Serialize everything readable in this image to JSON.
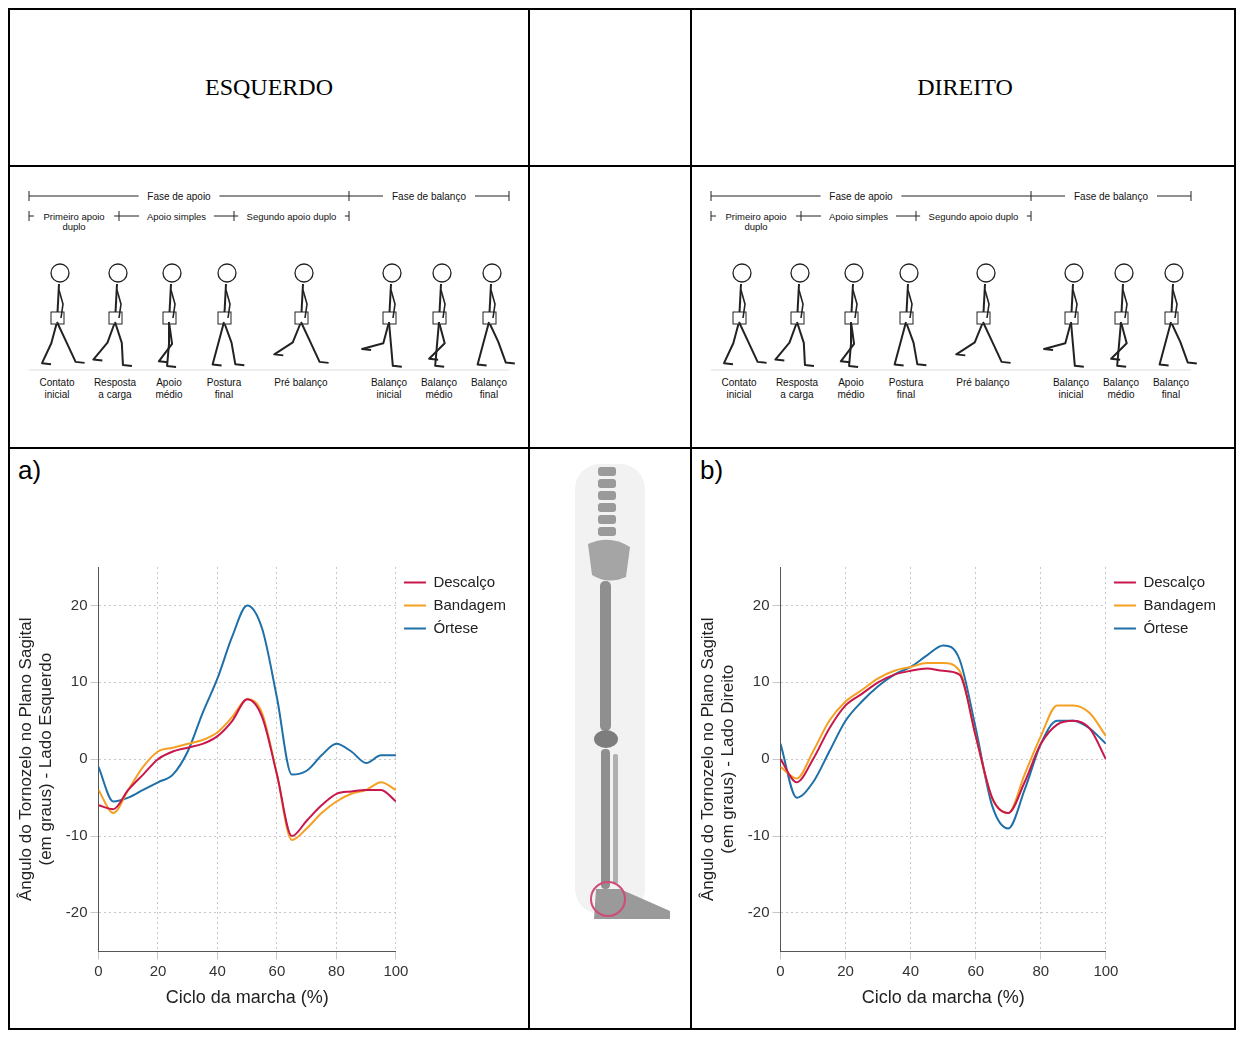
{
  "columns": [
    "ESQUERDO",
    "DIREITO"
  ],
  "phase_diagram": {
    "phases": [
      "Fase de apoio",
      "Fase de balanço"
    ],
    "support": [
      "Primeiro apoio duplo",
      "Apoio simples",
      "Segundo apoio duplo"
    ],
    "events": [
      "Contato inicial",
      "Resposta a carga",
      "Apoio médio",
      "Postura final",
      "Pré balanço",
      "Balanço inicial",
      "Balanço médio",
      "Balanço final"
    ]
  },
  "chart_data": [
    {
      "type": "line",
      "label": "a)",
      "x_label": "Ciclo da marcha (%)",
      "y_label": "Ângulo do Tornozelo no Plano Sagital (em graus) - Lado Esquerdo",
      "x": [
        0,
        5,
        10,
        15,
        20,
        25,
        30,
        35,
        40,
        45,
        50,
        55,
        60,
        65,
        70,
        75,
        80,
        85,
        90,
        95,
        100
      ],
      "series": [
        {
          "name": "Descalço",
          "color": "#c8174a",
          "values": [
            -6,
            -6.5,
            -4,
            -2,
            0,
            1,
            1.5,
            2,
            3,
            5,
            7.8,
            5.5,
            -2,
            -10,
            -8,
            -6,
            -4.5,
            -4.2,
            -4,
            -4,
            -5.5
          ]
        },
        {
          "name": "Bandagem",
          "color": "#f5a023",
          "values": [
            -4,
            -7,
            -4,
            -1,
            1,
            1.5,
            2,
            2.5,
            3.5,
            5.5,
            7.8,
            6,
            -2,
            -10.5,
            -9,
            -7,
            -5.5,
            -4.5,
            -4,
            -3,
            -4
          ]
        },
        {
          "name": "Órtese",
          "color": "#1f6fa8",
          "values": [
            -1,
            -5.5,
            -5,
            -4,
            -3,
            -2,
            1,
            6,
            10.5,
            16,
            20,
            17,
            8,
            -2,
            -1.5,
            0.5,
            2,
            1,
            -0.5,
            0.5,
            0.5
          ]
        }
      ],
      "xlim": [
        0,
        100
      ],
      "xticks": [
        0,
        20,
        40,
        60,
        80,
        100
      ],
      "ylim": [
        -25,
        25
      ],
      "yticks": [
        -20,
        -10,
        0,
        10,
        20
      ],
      "grid": true,
      "legend": "right"
    },
    {
      "type": "line",
      "label": "b)",
      "x_label": "Ciclo da marcha (%)",
      "y_label": "Ângulo do Tornozelo no Plano Sagital (em graus) - Lado Direito",
      "x": [
        0,
        5,
        10,
        15,
        20,
        25,
        30,
        35,
        40,
        45,
        50,
        55,
        60,
        65,
        70,
        75,
        80,
        85,
        90,
        95,
        100
      ],
      "series": [
        {
          "name": "Descalço",
          "color": "#c8174a",
          "values": [
            0,
            -3,
            0,
            4,
            7,
            8.5,
            10,
            11,
            11.5,
            11.8,
            11.5,
            11,
            3,
            -5,
            -7,
            -3,
            2,
            4.5,
            5,
            4,
            0
          ]
        },
        {
          "name": "Bandagem",
          "color": "#f5a023",
          "values": [
            -1,
            -2.5,
            1,
            5,
            7.5,
            9,
            10.5,
            11.5,
            12,
            12.5,
            12.5,
            11.5,
            3,
            -5,
            -7,
            -2,
            3,
            7,
            7,
            6,
            3
          ]
        },
        {
          "name": "Órtese",
          "color": "#1f6fa8",
          "values": [
            2,
            -5,
            -3,
            1,
            5,
            7.5,
            9.5,
            11,
            12,
            13.5,
            14.8,
            13,
            4,
            -6,
            -9,
            -4,
            2,
            5,
            5,
            4,
            2
          ]
        }
      ],
      "xlim": [
        0,
        100
      ],
      "xticks": [
        0,
        20,
        40,
        60,
        80,
        100
      ],
      "ylim": [
        -25,
        25
      ],
      "yticks": [
        -20,
        -10,
        0,
        10,
        20
      ],
      "grid": true,
      "legend": "right"
    }
  ]
}
